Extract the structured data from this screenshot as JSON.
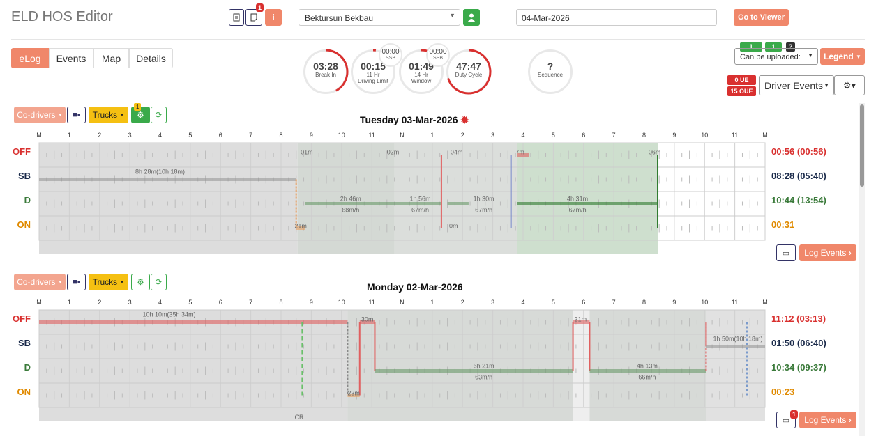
{
  "app": {
    "title": "ELD HOS Editor"
  },
  "header": {
    "doc_badge": "1",
    "driver": "Bektursun Bekbau",
    "date": "04-Mar-2026",
    "go_viewer": "Go to Viewer"
  },
  "tabs": [
    "eLog",
    "Events",
    "Map",
    "Details"
  ],
  "gauges": [
    {
      "value": "03:28",
      "label": "Break In",
      "l2": "",
      "pct": 0.42
    },
    {
      "value": "00:15",
      "label": "11 Hr",
      "l2": "Driving Limit",
      "pct": 0.02
    },
    {
      "value": "01:49",
      "label": "14 Hr",
      "l2": "Window",
      "pct": 0.12
    },
    {
      "value": "47:47",
      "label": "Duty Cycle",
      "l2": "",
      "pct": 0.7
    },
    {
      "value": "?",
      "label": "Sequence",
      "l2": "",
      "pct": 0
    }
  ],
  "ssb": [
    {
      "value": "00:00",
      "label": "SSB"
    },
    {
      "value": "00:00",
      "label": "SSB"
    }
  ],
  "right": {
    "upload_a": "1",
    "upload_b": "1",
    "help": "?",
    "can_upload": "Can be uploaded:",
    "legend": "Legend",
    "ue": "0 UE",
    "oue": "15 OUE",
    "driver_events": "Driver Events"
  },
  "axis_labels": [
    "M",
    "1",
    "2",
    "3",
    "4",
    "5",
    "6",
    "7",
    "8",
    "9",
    "10",
    "11",
    "N",
    "1",
    "2",
    "3",
    "4",
    "5",
    "6",
    "7",
    "8",
    "9",
    "10",
    "11",
    "M"
  ],
  "statuses": [
    "OFF",
    "SB",
    "D",
    "ON"
  ],
  "colors": {
    "off": "#d9302f",
    "sb": "#1a2a4a",
    "d": "#3a7a3a",
    "on": "#e08a00",
    "accent": "#f0876a"
  },
  "days": [
    {
      "title": "Tuesday 03-Mar-2026",
      "codrivers": "Co-drivers",
      "trucks": "Trucks",
      "engine_badge": "1",
      "totals": [
        "00:56 (00:56)",
        "08:28 (05:40)",
        "10:44 (13:54)",
        "00:31"
      ],
      "labels": [
        "8h 28m(10h 18m)",
        "01m",
        "02m",
        "2h 46m",
        "68m/h",
        "1h 56m",
        "67m/h",
        "1h 30m",
        "67m/h",
        "4h 31m",
        "67m/h",
        "21m",
        "0m",
        "04m",
        "7m",
        "06m"
      ],
      "log_events": "Log Events",
      "comment_badge": ""
    },
    {
      "title": "Monday 02-Mar-2026",
      "codrivers": "Co-drivers",
      "trucks": "Trucks",
      "engine_badge": "",
      "totals": [
        "11:12 (03:13)",
        "01:50 (06:40)",
        "10:34 (09:37)",
        "00:23"
      ],
      "labels": [
        "10h 10m(35h 34m)",
        "30m",
        "31m",
        "6h 21m",
        "63m/h",
        "4h 13m",
        "66m/h",
        "23m",
        "1h 50m(10h 18m)",
        "CR"
      ],
      "log_events": "Log Events",
      "comment_badge": "1"
    }
  ]
}
